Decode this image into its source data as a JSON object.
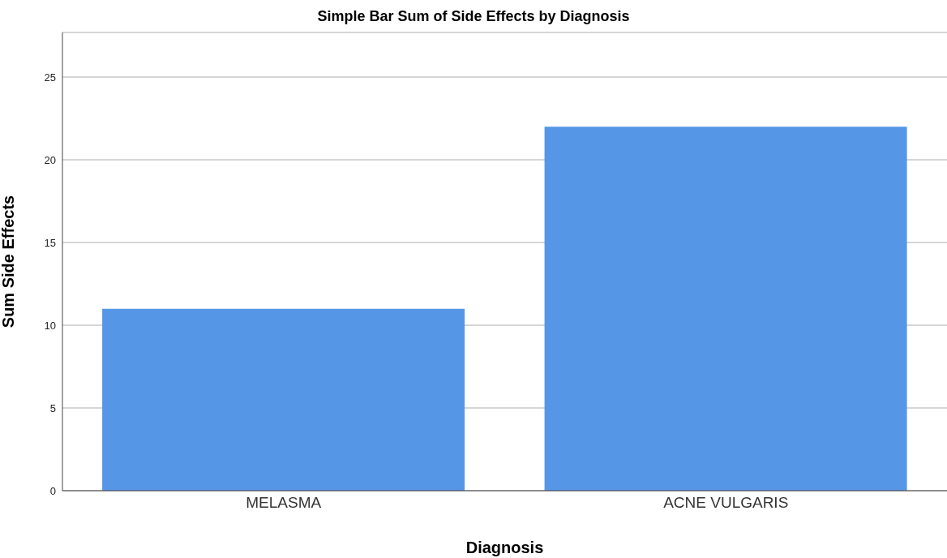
{
  "chart_data": {
    "type": "bar",
    "title": "Simple Bar Sum of Side Effects by Diagnosis",
    "xlabel": "Diagnosis",
    "ylabel": "Sum Side Effects",
    "categories": [
      "MELASMA",
      "ACNE VULGARIS"
    ],
    "values": [
      11,
      22
    ],
    "color": "#5596e6",
    "ylim": [
      0,
      27.7
    ],
    "yticks": [
      0,
      5,
      10,
      15,
      20,
      25
    ],
    "grid": "y"
  }
}
